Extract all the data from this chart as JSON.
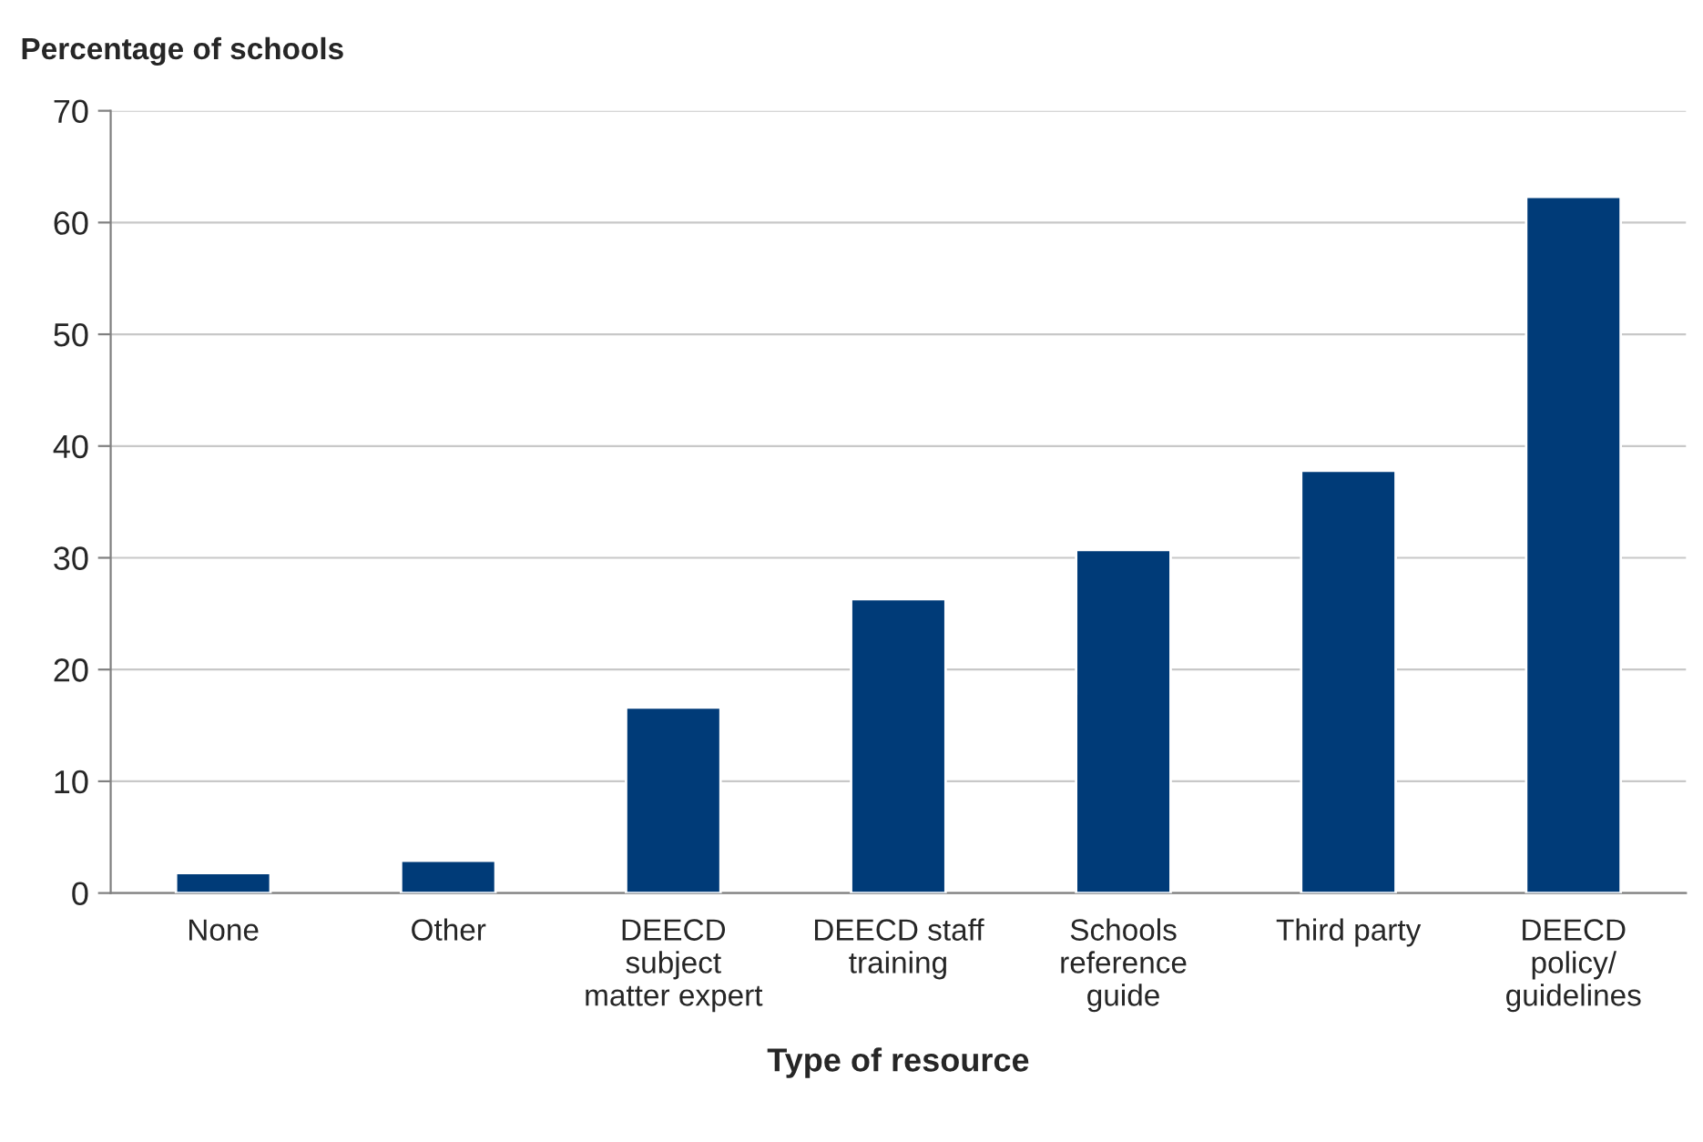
{
  "chart_data": {
    "type": "bar",
    "categories": [
      "None",
      "Other",
      "DEECD\nsubject\nmatter expert",
      "DEECD staff\ntraining",
      "Schools\nreference\nguide",
      "Third party",
      "DEECD\npolicy/\nguidelines"
    ],
    "values": [
      1.8,
      2.9,
      16.6,
      26.3,
      30.7,
      37.8,
      62.3
    ],
    "color": "#003b78",
    "xlabel": "Type of resource",
    "ylabel": "Percentage of schools",
    "ylim": [
      0,
      70
    ],
    "yticks": [
      0,
      10,
      20,
      30,
      40,
      50,
      60,
      70
    ],
    "grid": "y"
  }
}
